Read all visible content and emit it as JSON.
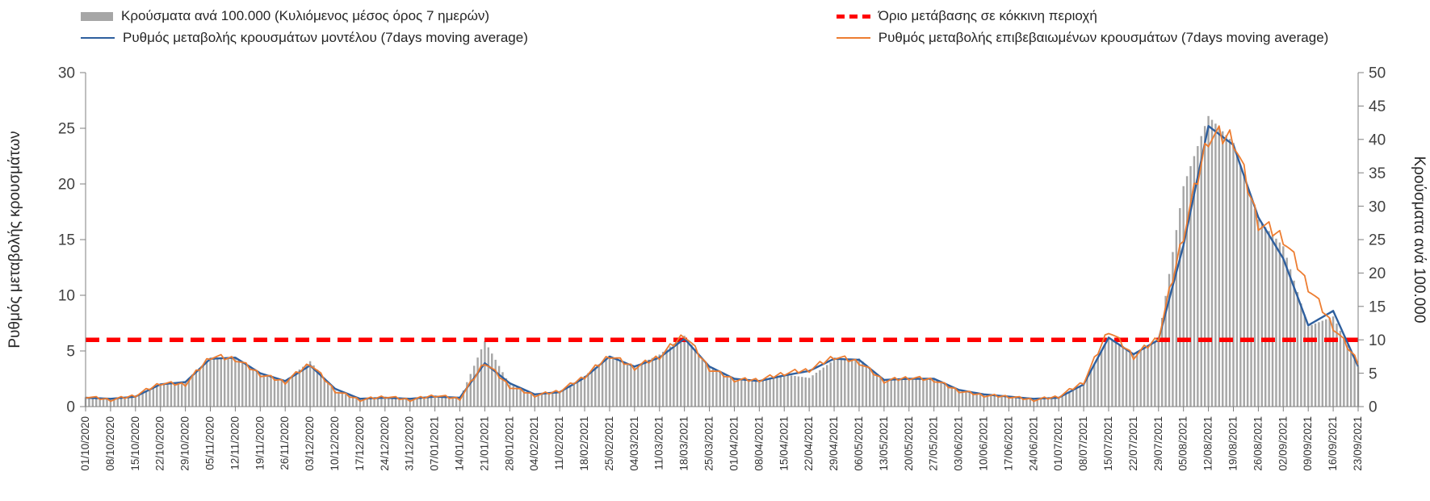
{
  "legend": {
    "bars": "Κρούσματα ανά 100.000 (Κυλιόμενος μέσος όρος 7 ημερών)",
    "threshold": "Όριο μετάβασης σε κόκκινη περιοχή",
    "model": "Ρυθμός μεταβολής κρουσμάτων μοντέλου (7days moving average)",
    "confirmed": "Ρυθμός μεταβολής επιβεβαιωμένων κρουσμάτων (7days moving average)"
  },
  "chart_data": {
    "type": "combo",
    "title": "",
    "x_labels": [
      "01/10/2020",
      "08/10/2020",
      "15/10/2020",
      "22/10/2020",
      "29/10/2020",
      "05/11/2020",
      "12/11/2020",
      "19/11/2020",
      "26/11/2020",
      "03/12/2020",
      "10/12/2020",
      "17/12/2020",
      "24/12/2020",
      "31/12/2020",
      "07/01/2021",
      "14/01/2021",
      "21/01/2021",
      "28/01/2021",
      "04/02/2021",
      "11/02/2021",
      "18/02/2021",
      "25/02/2021",
      "04/03/2021",
      "11/03/2021",
      "18/03/2021",
      "25/03/2021",
      "01/04/2021",
      "08/04/2021",
      "15/04/2021",
      "22/04/2021",
      "29/04/2021",
      "06/05/2021",
      "13/05/2021",
      "20/05/2021",
      "27/05/2021",
      "03/06/2021",
      "10/06/2021",
      "17/06/2021",
      "24/06/2021",
      "01/07/2021",
      "08/07/2021",
      "15/07/2021",
      "22/07/2021",
      "29/07/2021",
      "05/08/2021",
      "12/08/2021",
      "19/08/2021",
      "26/08/2021",
      "02/09/2021",
      "09/09/2021",
      "16/09/2021",
      "23/09/2021"
    ],
    "left_axis": {
      "label": "Ρυθμός μεταβολής κρουσμάτων",
      "min": 0,
      "max": 30,
      "step": 5
    },
    "right_axis": {
      "label": "Κρούσματα ανά 100.000",
      "min": 0,
      "max": 50,
      "step": 5
    },
    "threshold": {
      "label": "Όριο μετάβασης σε κόκκινη περιοχή",
      "axis": "left",
      "value": 6,
      "color": "#ff0000"
    },
    "series": [
      {
        "name": "Κρούσματα ανά 100.000 (Κυλιόμενος μέσος όρος 7 ημερών)",
        "type": "bar",
        "axis": "right",
        "color": "#a6a6a6",
        "values": [
          1.4,
          1.1,
          1.5,
          3.4,
          3.8,
          7.3,
          7.4,
          5.0,
          3.9,
          6.8,
          2.4,
          1.1,
          1.4,
          1.1,
          1.5,
          1.2,
          9.8,
          3.3,
          1.8,
          2.2,
          4.6,
          7.6,
          6.0,
          7.8,
          10.6,
          5.9,
          4.2,
          4.0,
          4.8,
          4.3,
          7.0,
          7.2,
          4.0,
          4.2,
          4.2,
          2.5,
          1.8,
          1.5,
          1.2,
          1.4,
          3.4,
          10.4,
          8.0,
          10.0,
          33.0,
          43.5,
          39.5,
          28.0,
          24.0,
          12.0,
          13.5,
          6.0
        ]
      },
      {
        "name": "Ρυθμός μεταβολής κρουσμάτων μοντέλου (7days moving average)",
        "type": "line",
        "axis": "left",
        "color": "#2e5f9e",
        "values": [
          0.8,
          0.7,
          0.9,
          2.0,
          2.2,
          4.3,
          4.4,
          3.0,
          2.3,
          3.7,
          1.6,
          0.7,
          0.8,
          0.7,
          0.9,
          0.8,
          3.9,
          2.1,
          1.1,
          1.3,
          2.6,
          4.5,
          3.6,
          4.4,
          6.1,
          3.6,
          2.5,
          2.3,
          2.8,
          3.2,
          4.3,
          4.2,
          2.4,
          2.5,
          2.5,
          1.5,
          1.1,
          0.9,
          0.7,
          0.8,
          2.0,
          6.2,
          4.7,
          6.0,
          14.5,
          25.2,
          23.5,
          17.0,
          13.3,
          7.3,
          8.6,
          3.6
        ]
      },
      {
        "name": "Ρυθμός μεταβολής επιβεβαιωμένων κρουσμάτων (7days moving average)",
        "type": "line",
        "axis": "left",
        "color": "#ed7d31",
        "values": [
          0.9,
          0.6,
          1.0,
          2.1,
          2.0,
          4.5,
          4.3,
          2.9,
          2.2,
          3.9,
          1.4,
          0.6,
          0.9,
          0.6,
          1.0,
          0.7,
          4.0,
          1.8,
          1.0,
          1.4,
          2.7,
          4.6,
          3.5,
          4.5,
          6.5,
          3.4,
          2.4,
          2.4,
          3.0,
          3.3,
          4.5,
          4.0,
          2.3,
          2.6,
          2.4,
          1.4,
          1.0,
          0.9,
          0.6,
          0.9,
          2.2,
          6.9,
          4.5,
          6.2,
          15.5,
          24.3,
          24.2,
          16.5,
          15.2,
          10.8,
          7.2,
          4.0
        ]
      }
    ]
  }
}
